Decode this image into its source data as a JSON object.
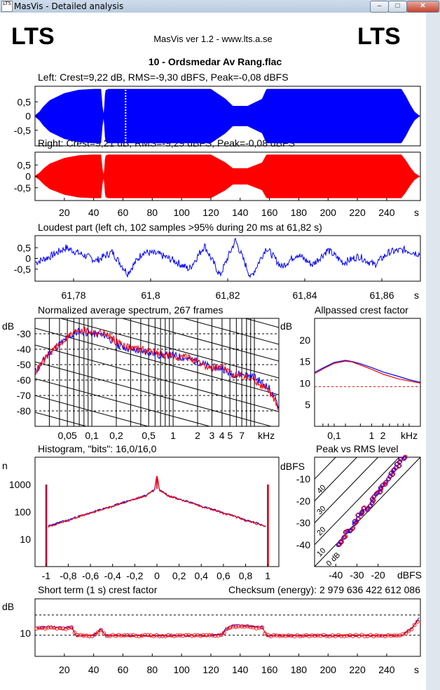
{
  "window": {
    "title": "MasVis - Detailed analysis",
    "icon_label": "LTS",
    "buttons": {
      "minimize": "–",
      "maximize": "□",
      "close": "✕"
    }
  },
  "header": {
    "logo_left": "LTS",
    "logo_right": "LTS",
    "version": "MasVis ver 1.2 - www.lts.a.se",
    "file_title": "10 - Ordsmedar Av Rang.flac"
  },
  "colors": {
    "left": "#0000ff",
    "right": "#ff0000",
    "grid": "#000000"
  },
  "panels": {
    "left_wave": {
      "title": "Left: Crest=9,22 dB, RMS=-9,30 dBFS, Peak=-0,08 dBFS",
      "yticks": [
        "0,5",
        "0",
        "-0,5"
      ],
      "marker_s": 61.82
    },
    "right_wave": {
      "title": "Right: Crest=9,21 dB, RMS=-9,29 dBFS, Peak=-0,08 dBFS",
      "yticks": [
        "0,5",
        "0",
        "-0,5"
      ]
    },
    "time_axis": {
      "ticks": [
        "20",
        "40",
        "60",
        "80",
        "100",
        "120",
        "140",
        "160",
        "180",
        "200",
        "220",
        "240"
      ],
      "unit": "s"
    },
    "loudest": {
      "title": "Loudest part (left  ch, 102 samples >95% during 20 ms at 61,82 s)",
      "yticks": [
        "0,5",
        "0",
        "-0,5"
      ],
      "xticks": [
        "61,78",
        "61,8",
        "61,82",
        "61,84",
        "61,86"
      ],
      "unit": "s"
    },
    "spectrum": {
      "title": "Normalized average spectrum, 267 frames",
      "ylabel": "dB",
      "yticks": [
        "-30",
        "-40",
        "-50",
        "-60",
        "-70",
        "-80"
      ],
      "xticks": [
        "0,05",
        "0,1",
        "0,2",
        "0,5",
        "1",
        "2",
        "3",
        "4 5",
        "7"
      ],
      "unit": "kHz"
    },
    "crest": {
      "title": "Allpassed crest factor",
      "ylabel": "dB",
      "yticks": [
        "20",
        "15",
        "10",
        "5"
      ],
      "xticks": [
        "0,1",
        "1",
        "2"
      ],
      "unit": "kHz"
    },
    "histogram": {
      "title": "Histogram, \"bits\": 16,0/16,0",
      "ylabel": "n",
      "yticks": [
        "1000",
        "100",
        "10"
      ],
      "xticks": [
        "-1",
        "-0,8",
        "-0,6",
        "-0,4",
        "-0,2",
        "0",
        "0,2",
        "0,4",
        "0,6",
        "0,8",
        "1"
      ]
    },
    "peakrms": {
      "title": "Peak vs RMS level",
      "ylabel": "dBFS",
      "yticks": [
        "-10",
        "-20",
        "-30",
        "-40"
      ],
      "xticks": [
        "-40",
        "-30",
        "-20"
      ],
      "xunit": "dBFS",
      "diag_labels": [
        "40",
        "30",
        "20",
        "10",
        "0 dB"
      ]
    },
    "shortterm": {
      "title": "Short term (1 s) crest factor",
      "checksum": "Checksum (energy):  2 979 636 422 612 086",
      "ylabel": "dB",
      "yticks": [
        "10"
      ],
      "xticks": [
        "20",
        "40",
        "60",
        "80",
        "100",
        "120",
        "140",
        "160",
        "180",
        "200",
        "220",
        "240"
      ],
      "unit": "s"
    }
  },
  "chart_data": [
    {
      "type": "area",
      "title": "Left: Crest=9,22 dB, RMS=-9,30 dBFS, Peak=-0,08 dBFS",
      "xlim": [
        0,
        263
      ],
      "ylim": [
        -1,
        1
      ],
      "x": [
        0,
        3,
        6,
        10,
        20,
        30,
        40,
        45,
        46,
        47,
        48,
        50,
        60,
        70,
        100,
        120,
        130,
        135,
        145,
        155,
        158,
        160,
        170,
        200,
        230,
        250,
        253,
        256,
        259,
        262
      ],
      "envelope": [
        0.02,
        0.15,
        0.35,
        0.55,
        0.8,
        0.92,
        0.95,
        0.95,
        0.3,
        0.02,
        0.9,
        0.95,
        0.95,
        0.95,
        0.95,
        0.95,
        0.6,
        0.35,
        0.35,
        0.6,
        0.95,
        0.95,
        0.95,
        0.95,
        0.95,
        0.95,
        0.7,
        0.4,
        0.15,
        0.02
      ]
    },
    {
      "type": "area",
      "title": "Right: Crest=9,21 dB, RMS=-9,29 dBFS, Peak=-0,08 dBFS",
      "xlim": [
        0,
        263
      ],
      "ylim": [
        -1,
        1
      ],
      "x": [
        0,
        3,
        6,
        10,
        20,
        30,
        40,
        45,
        46,
        47,
        48,
        50,
        60,
        70,
        100,
        120,
        130,
        135,
        145,
        155,
        158,
        160,
        170,
        200,
        230,
        250,
        253,
        256,
        259,
        262
      ],
      "envelope": [
        0.02,
        0.15,
        0.35,
        0.55,
        0.8,
        0.92,
        0.95,
        0.95,
        0.3,
        0.02,
        0.9,
        0.95,
        0.95,
        0.95,
        0.95,
        0.95,
        0.6,
        0.35,
        0.35,
        0.6,
        0.95,
        0.95,
        0.95,
        0.95,
        0.95,
        0.95,
        0.7,
        0.4,
        0.15,
        0.02
      ]
    },
    {
      "type": "line",
      "title": "Loudest part (left  ch, 102 samples >95% during 20 ms at 61,82 s)",
      "xlim": [
        61.77,
        61.87
      ],
      "ylim": [
        -1,
        1
      ],
      "x": [
        61.77,
        61.774,
        61.778,
        61.782,
        61.786,
        61.79,
        61.794,
        61.798,
        61.802,
        61.806,
        61.81,
        61.814,
        61.818,
        61.822,
        61.826,
        61.83,
        61.834,
        61.838,
        61.842,
        61.846,
        61.85,
        61.854,
        61.858,
        61.862,
        61.866,
        61.87
      ],
      "y": [
        -0.2,
        0.1,
        0.5,
        0.2,
        -0.1,
        0.3,
        -0.7,
        0.3,
        0.2,
        -0.1,
        -0.5,
        0.6,
        -0.8,
        0.85,
        -0.9,
        0.5,
        -0.4,
        0.2,
        -0.3,
        0.4,
        -0.2,
        0.1,
        -0.3,
        0.3,
        0.4,
        0.2
      ]
    },
    {
      "type": "line",
      "title": "Normalized average spectrum, 267 frames",
      "xlabel": "kHz",
      "ylabel": "dB",
      "xscale": "log",
      "xlim": [
        0.02,
        20
      ],
      "ylim": [
        -90,
        -20
      ],
      "x": [
        0.02,
        0.03,
        0.05,
        0.07,
        0.1,
        0.15,
        0.2,
        0.3,
        0.5,
        0.7,
        1,
        1.5,
        2,
        3,
        4,
        5,
        7,
        10,
        15,
        20
      ],
      "series": [
        {
          "values": [
            -55,
            -42,
            -33,
            -28,
            -30,
            -31,
            -37,
            -40,
            -42,
            -44,
            -44,
            -46,
            -48,
            -52,
            -52,
            -56,
            -56,
            -58,
            -65,
            -77
          ]
        },
        {
          "values": [
            -55,
            -43,
            -32,
            -27,
            -29,
            -30,
            -35,
            -39,
            -41,
            -43,
            -45,
            -45,
            -49,
            -53,
            -51,
            -56,
            -57,
            -60,
            -67,
            -78
          ]
        }
      ]
    },
    {
      "type": "line",
      "title": "Allpassed crest factor",
      "xlabel": "kHz",
      "ylabel": "dB",
      "xscale": "log",
      "xlim": [
        0.03,
        20
      ],
      "ylim": [
        0,
        25
      ],
      "reference": 9.2,
      "x": [
        0.03,
        0.05,
        0.1,
        0.2,
        0.3,
        0.5,
        1,
        2,
        5,
        10,
        20
      ],
      "series": [
        {
          "values": [
            12.5,
            13.5,
            14.8,
            15.3,
            15.0,
            14.5,
            13.6,
            12.6,
            11.6,
            10.8,
            10.2
          ]
        },
        {
          "values": [
            12.2,
            13.3,
            14.6,
            15.1,
            14.9,
            14.2,
            13.2,
            12.1,
            11.0,
            10.5,
            10.0
          ]
        }
      ]
    },
    {
      "type": "line",
      "title": "Histogram, \"bits\": 16,0/16,0",
      "ylabel": "n",
      "yscale": "log",
      "xlim": [
        -1.1,
        1.1
      ],
      "ylim": [
        1,
        10000
      ],
      "x": [
        -1,
        -0.98,
        -0.8,
        -0.6,
        -0.4,
        -0.2,
        -0.1,
        -0.02,
        0,
        0.02,
        0.1,
        0.2,
        0.4,
        0.6,
        0.8,
        0.98,
        1
      ],
      "series": [
        {
          "values": [
            1000,
            30,
            50,
            90,
            160,
            290,
            400,
            650,
            2000,
            650,
            400,
            290,
            160,
            90,
            50,
            30,
            1000
          ]
        },
        {
          "values": [
            1000,
            28,
            48,
            88,
            155,
            285,
            390,
            640,
            2000,
            640,
            390,
            285,
            155,
            88,
            48,
            28,
            1000
          ]
        }
      ]
    },
    {
      "type": "scatter",
      "title": "Peak vs RMS level",
      "xlabel": "dBFS",
      "ylabel": "dBFS",
      "xlim": [
        -50,
        0
      ],
      "ylim": [
        -50,
        0
      ],
      "x": [
        -39,
        -37,
        -35,
        -33,
        -31,
        -29,
        -27,
        -25,
        -23,
        -21,
        -19,
        -17,
        -15,
        -13,
        -11,
        -9
      ],
      "y": [
        -41,
        -38,
        -35,
        -33,
        -30,
        -27,
        -25,
        -23,
        -20,
        -17,
        -15,
        -12,
        -9,
        -7,
        -4,
        -1
      ]
    },
    {
      "type": "line",
      "title": "Short term (1 s) crest factor",
      "ylabel": "dB",
      "xlim": [
        0,
        263
      ],
      "ylim": [
        0,
        25
      ],
      "reference": [
        9.2,
        18
      ],
      "x": [
        2,
        10,
        20,
        25,
        28,
        30,
        40,
        45,
        48,
        50,
        60,
        80,
        100,
        120,
        128,
        130,
        135,
        140,
        150,
        155,
        158,
        160,
        170,
        200,
        230,
        250,
        255,
        258,
        262
      ],
      "series": [
        {
          "values": [
            12.5,
            13,
            12.5,
            13,
            9,
            9,
            9,
            12,
            9,
            9,
            9,
            9,
            9,
            9,
            10,
            12,
            13.5,
            13.5,
            13,
            13,
            9,
            9,
            9,
            9,
            9,
            9,
            11.5,
            13,
            17
          ]
        },
        {
          "values": [
            12,
            12.5,
            12,
            12.5,
            9,
            9,
            9,
            11.5,
            9,
            9,
            9,
            9,
            9,
            9,
            9.5,
            11.5,
            13,
            13,
            12.5,
            12.5,
            9,
            9,
            9,
            9,
            9,
            9,
            11,
            12.5,
            16
          ]
        }
      ]
    }
  ]
}
